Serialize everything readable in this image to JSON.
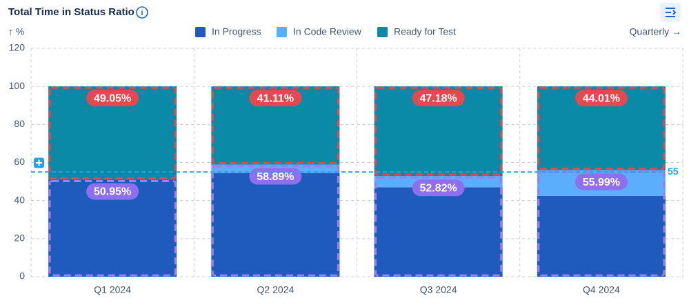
{
  "chart_data": {
    "type": "stacked_bar",
    "title": "Total Time in Status Ratio",
    "y_label": "↑ %",
    "period": "Quarterly →",
    "categories": [
      "Q1 2024",
      "Q2 2024",
      "Q3 2024",
      "Q4 2024"
    ],
    "series": [
      {
        "name": "In Progress",
        "color": "#1f5bbd",
        "values": [
          50.95,
          54.5,
          47.0,
          42.5
        ]
      },
      {
        "name": "In Code Review",
        "color": "#5aaefc",
        "values": [
          0,
          4.39,
          5.82,
          13.49
        ]
      },
      {
        "name": "Ready for Test",
        "color": "#0b8aa8",
        "values": [
          49.05,
          41.11,
          47.18,
          44.01
        ],
        "value_labels": [
          "49.05%",
          "41.11%",
          "47.18%",
          "44.01%"
        ]
      }
    ],
    "group_totals": {
      "values": [
        50.95,
        58.89,
        52.82,
        55.99
      ],
      "value_labels": [
        "50.95%",
        "58.89%",
        "52.82%",
        "55.99%"
      ]
    },
    "reference_line": {
      "value": 55,
      "color": "#2b9fe6"
    },
    "ylim": [
      0,
      120
    ],
    "yticks": [
      0,
      20,
      40,
      60,
      80,
      100,
      120
    ],
    "grid": true
  }
}
